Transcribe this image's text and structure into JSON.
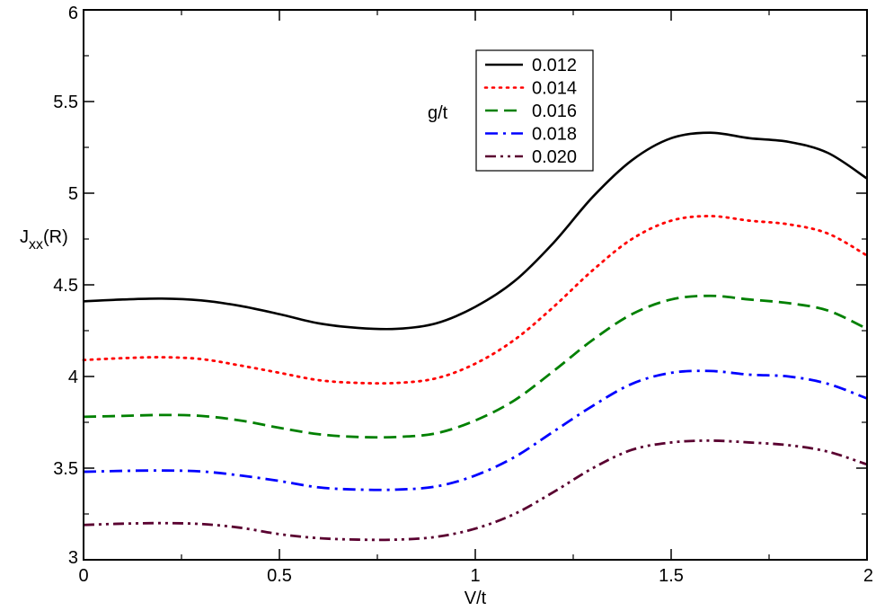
{
  "chart_data": {
    "type": "line",
    "xlabel": "V/t",
    "ylabel_main": "J",
    "ylabel_sub": "xx",
    "ylabel_tail": "(R)",
    "legend_title": "g/t",
    "legend_placement": "top-center",
    "grid": false,
    "xlim": [
      0,
      2
    ],
    "ylim": [
      3,
      6
    ],
    "x_ticks": [
      "0",
      "0.5",
      "1",
      "1.5",
      "2"
    ],
    "y_ticks": [
      "3",
      "3.5",
      "4",
      "4.5",
      "5",
      "5.5",
      "6"
    ],
    "x": [
      0,
      0.1,
      0.2,
      0.3,
      0.4,
      0.5,
      0.6,
      0.7,
      0.8,
      0.9,
      1.0,
      1.1,
      1.2,
      1.3,
      1.4,
      1.5,
      1.6,
      1.7,
      1.8,
      1.9,
      2.0
    ],
    "series": [
      {
        "name": "0.012",
        "color": "#000000",
        "style": "solid",
        "values": [
          4.41,
          4.42,
          4.425,
          4.415,
          4.385,
          4.34,
          4.29,
          4.265,
          4.26,
          4.29,
          4.38,
          4.52,
          4.73,
          4.98,
          5.18,
          5.3,
          5.33,
          5.3,
          5.28,
          5.22,
          5.08
        ]
      },
      {
        "name": "0.014",
        "color": "#ff0000",
        "style": "dotted",
        "values": [
          4.09,
          4.1,
          4.105,
          4.095,
          4.06,
          4.02,
          3.98,
          3.965,
          3.965,
          3.99,
          4.07,
          4.2,
          4.38,
          4.58,
          4.75,
          4.85,
          4.875,
          4.85,
          4.83,
          4.78,
          4.66
        ]
      },
      {
        "name": "0.016",
        "color": "#008000",
        "style": "dashed",
        "values": [
          3.78,
          3.785,
          3.79,
          3.785,
          3.76,
          3.72,
          3.685,
          3.67,
          3.67,
          3.69,
          3.76,
          3.87,
          4.03,
          4.2,
          4.34,
          4.42,
          4.44,
          4.42,
          4.4,
          4.36,
          4.26
        ]
      },
      {
        "name": "0.018",
        "color": "#0000ff",
        "style": "dashdot",
        "values": [
          3.48,
          3.485,
          3.487,
          3.482,
          3.46,
          3.43,
          3.395,
          3.383,
          3.383,
          3.4,
          3.46,
          3.56,
          3.7,
          3.84,
          3.96,
          4.02,
          4.03,
          4.01,
          4.0,
          3.96,
          3.88
        ]
      },
      {
        "name": "0.020",
        "color": "#5a0030",
        "style": "dashdotdot",
        "values": [
          3.19,
          3.197,
          3.2,
          3.195,
          3.175,
          3.14,
          3.118,
          3.11,
          3.11,
          3.125,
          3.17,
          3.25,
          3.37,
          3.5,
          3.6,
          3.64,
          3.65,
          3.64,
          3.625,
          3.59,
          3.52
        ]
      }
    ]
  }
}
